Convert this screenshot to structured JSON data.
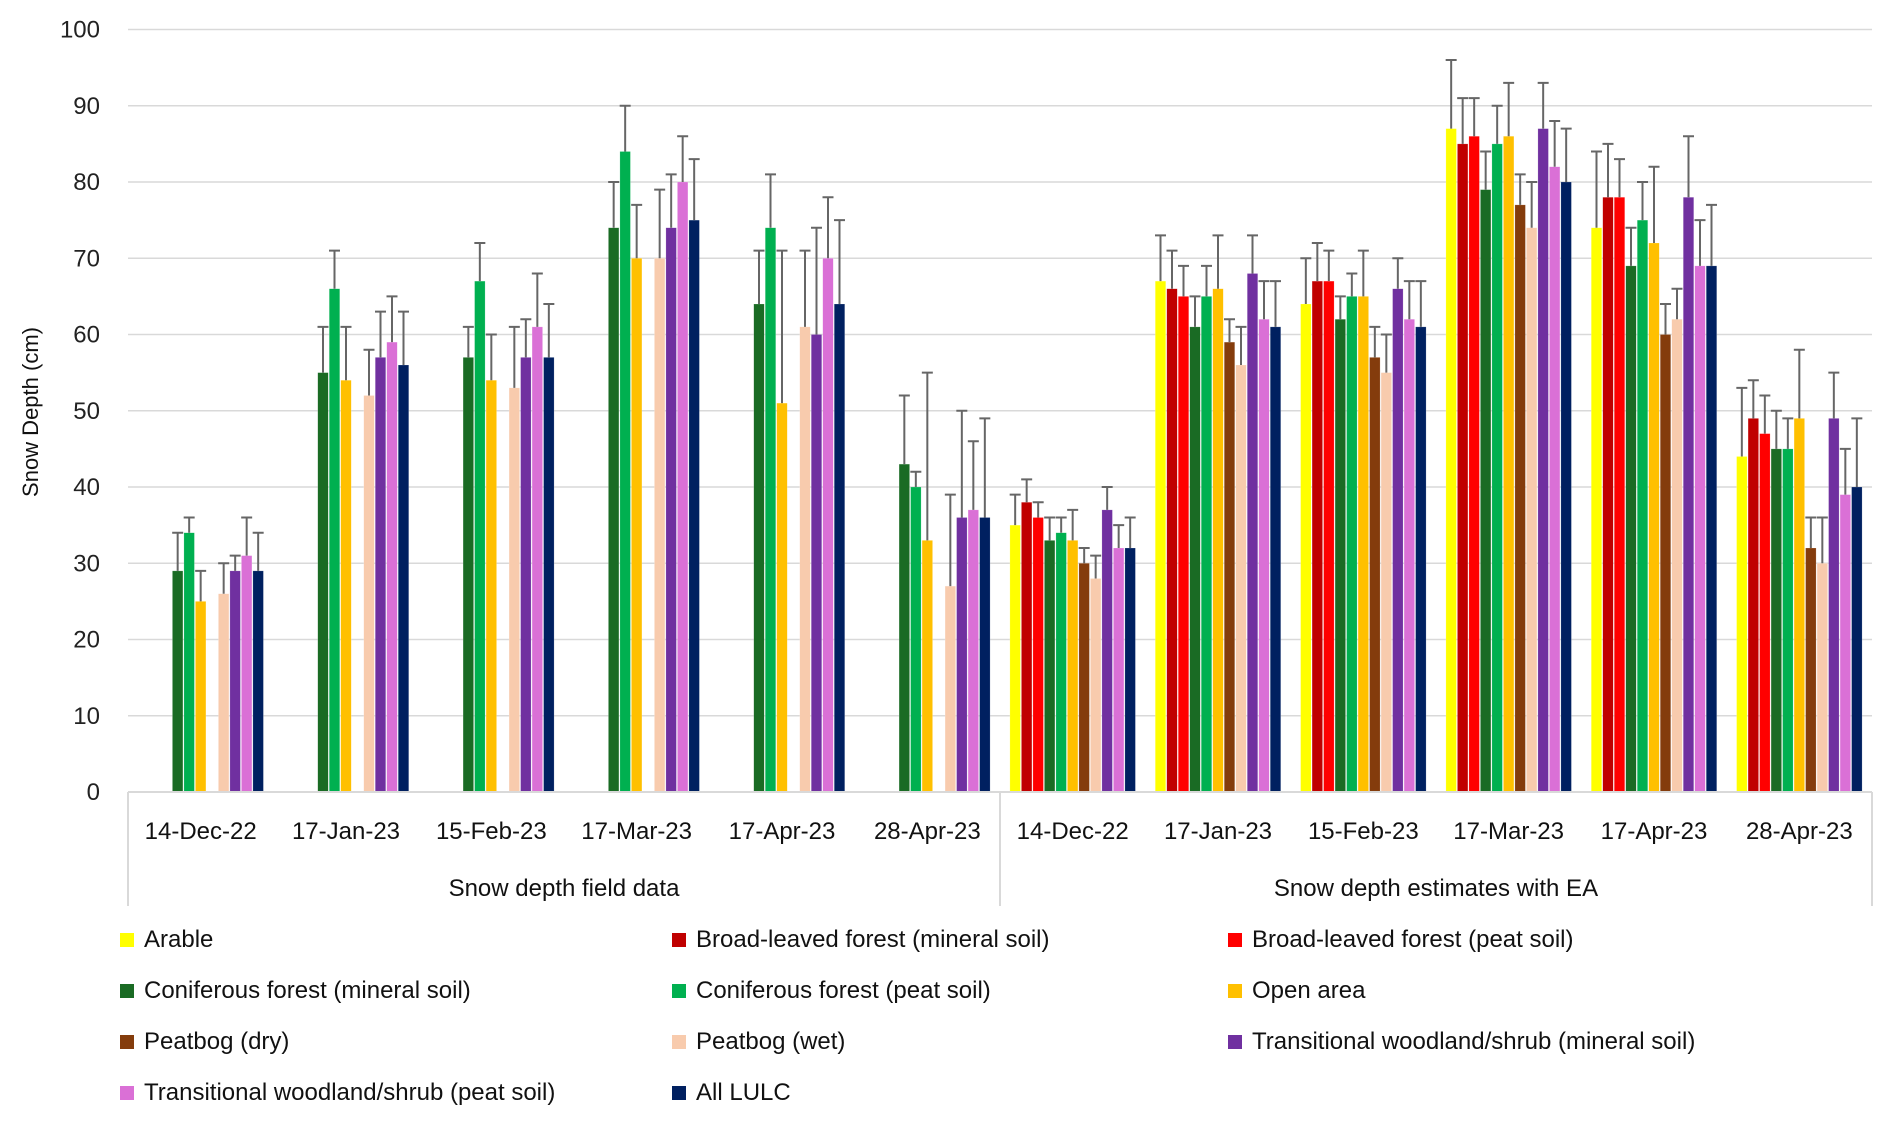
{
  "chart_data": {
    "type": "bar",
    "title": "",
    "ylabel": "Snow Depth (cm)",
    "xlabel": "",
    "ylim": [
      0,
      100
    ],
    "yticks": [
      0,
      10,
      20,
      30,
      40,
      50,
      60,
      70,
      80,
      90,
      100
    ],
    "grid": true,
    "legend_position": "bottom",
    "groups": [
      {
        "label": "Snow depth field data",
        "categories": [
          "14-Dec-22",
          "17-Jan-23",
          "15-Feb-23",
          "17-Mar-23",
          "17-Apr-23",
          "28-Apr-23"
        ]
      },
      {
        "label": "Snow depth estimates with EA",
        "categories": [
          "14-Dec-22",
          "17-Jan-23",
          "15-Feb-23",
          "17-Mar-23",
          "17-Apr-23",
          "28-Apr-23"
        ]
      }
    ],
    "categories": [
      "14-Dec-22",
      "17-Jan-23",
      "15-Feb-23",
      "17-Mar-23",
      "17-Apr-23",
      "28-Apr-23",
      "14-Dec-22",
      "17-Jan-23",
      "15-Feb-23",
      "17-Mar-23",
      "17-Apr-23",
      "28-Apr-23"
    ],
    "series": [
      {
        "name": "Arable",
        "color": "#FFFF00",
        "values": [
          null,
          null,
          null,
          null,
          null,
          null,
          35,
          67,
          64,
          87,
          74,
          44
        ],
        "error_plus": [
          null,
          null,
          null,
          null,
          null,
          null,
          4,
          6,
          6,
          9,
          10,
          9
        ]
      },
      {
        "name": "Broad-leaved forest (mineral soil)",
        "color": "#C00000",
        "values": [
          null,
          null,
          null,
          null,
          null,
          null,
          38,
          66,
          67,
          85,
          78,
          49
        ],
        "error_plus": [
          null,
          null,
          null,
          null,
          null,
          null,
          3,
          5,
          5,
          6,
          7,
          5
        ]
      },
      {
        "name": "Broad-leaved forest (peat soil)",
        "color": "#FF0000",
        "values": [
          null,
          null,
          null,
          null,
          null,
          null,
          36,
          65,
          67,
          86,
          78,
          47
        ],
        "error_plus": [
          null,
          null,
          null,
          null,
          null,
          null,
          2,
          4,
          4,
          5,
          5,
          5
        ]
      },
      {
        "name": "Coniferous forest (mineral soil)",
        "color": "#1A6B24",
        "values": [
          29,
          55,
          57,
          74,
          64,
          43,
          33,
          61,
          62,
          79,
          69,
          45
        ],
        "error_plus": [
          5,
          6,
          4,
          6,
          7,
          9,
          3,
          4,
          3,
          5,
          5,
          5
        ]
      },
      {
        "name": "Coniferous forest (peat soil)",
        "color": "#00B050",
        "values": [
          34,
          66,
          67,
          84,
          74,
          40,
          34,
          65,
          65,
          85,
          75,
          45
        ],
        "error_plus": [
          2,
          5,
          5,
          6,
          7,
          2,
          2,
          4,
          3,
          5,
          5,
          4
        ]
      },
      {
        "name": "Open area",
        "color": "#FFC000",
        "values": [
          25,
          54,
          54,
          70,
          51,
          33,
          33,
          66,
          65,
          86,
          72,
          49
        ],
        "error_plus": [
          4,
          7,
          6,
          7,
          20,
          22,
          4,
          7,
          6,
          7,
          10,
          9
        ]
      },
      {
        "name": "Peatbog (dry)",
        "color": "#843C0C",
        "values": [
          null,
          null,
          null,
          null,
          null,
          null,
          30,
          59,
          57,
          77,
          60,
          32
        ],
        "error_plus": [
          null,
          null,
          null,
          null,
          null,
          null,
          2,
          3,
          4,
          4,
          4,
          4
        ]
      },
      {
        "name": "Peatbog (wet)",
        "color": "#F8CBAD",
        "values": [
          26,
          52,
          53,
          70,
          61,
          27,
          28,
          56,
          55,
          74,
          62,
          30
        ],
        "error_plus": [
          4,
          6,
          8,
          9,
          10,
          12,
          3,
          5,
          5,
          6,
          4,
          6
        ]
      },
      {
        "name": "Transitional woodland/shrub (mineral soil)",
        "color": "#7030A0",
        "values": [
          29,
          57,
          57,
          74,
          60,
          36,
          37,
          68,
          66,
          87,
          78,
          49
        ],
        "error_plus": [
          2,
          6,
          5,
          7,
          14,
          14,
          3,
          5,
          4,
          6,
          8,
          6
        ]
      },
      {
        "name": "Transitional woodland/shrub (peat soil)",
        "color": "#DA70D6",
        "values": [
          31,
          59,
          61,
          80,
          70,
          37,
          32,
          62,
          62,
          82,
          69,
          39
        ],
        "error_plus": [
          5,
          6,
          7,
          6,
          8,
          9,
          3,
          5,
          5,
          6,
          6,
          6
        ]
      },
      {
        "name": "All LULC",
        "color": "#002060",
        "values": [
          29,
          56,
          57,
          75,
          64,
          36,
          32,
          61,
          61,
          80,
          69,
          40
        ],
        "error_plus": [
          5,
          7,
          7,
          8,
          11,
          13,
          4,
          6,
          6,
          7,
          8,
          9
        ]
      }
    ]
  },
  "legend": {
    "items": [
      {
        "label": "Arable",
        "color": "#FFFF00"
      },
      {
        "label": "Broad-leaved forest (mineral soil)",
        "color": "#C00000"
      },
      {
        "label": "Broad-leaved forest (peat soil)",
        "color": "#FF0000"
      },
      {
        "label": "Coniferous forest (mineral soil)",
        "color": "#1A6B24"
      },
      {
        "label": "Coniferous forest (peat soil)",
        "color": "#00B050"
      },
      {
        "label": "Open area",
        "color": "#FFC000"
      },
      {
        "label": "Peatbog (dry)",
        "color": "#843C0C"
      },
      {
        "label": "Peatbog (wet)",
        "color": "#F8CBAD"
      },
      {
        "label": "Transitional woodland/shrub (mineral soil)",
        "color": "#7030A0"
      },
      {
        "label": "Transitional woodland/shrub (peat soil)",
        "color": "#DA70D6"
      },
      {
        "label": "All LULC",
        "color": "#002060"
      }
    ]
  }
}
